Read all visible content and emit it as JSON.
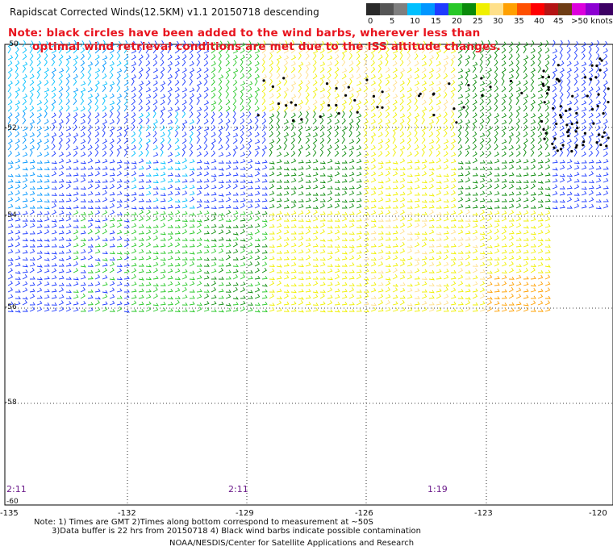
{
  "header": {
    "title": "Rapidscat Corrected Winds(12.5KM) v1.1 20150718 descending",
    "note_line1": "Note: black circles have been added to the wind barbs, wherever less than",
    "note_line2": "optimal wind retrieval conditions are met due to the ISS altitude changes."
  },
  "legend": {
    "colors": [
      "#2a2a2a",
      "#555555",
      "#7f7f7f",
      "#00c0ff",
      "#0096ff",
      "#1f3cff",
      "#28c828",
      "#0a8a0a",
      "#f0f000",
      "#ffe08a",
      "#ffa000",
      "#ff5000",
      "#ff0000",
      "#b41414",
      "#6e3c14",
      "#dc00dc",
      "#8c00d2",
      "#3c0064"
    ],
    "labels": [
      "0",
      "5",
      "10",
      "15",
      "20",
      "25",
      "30",
      "35",
      "40",
      "45",
      ">50 knots"
    ]
  },
  "axes": {
    "lat_labels": [
      "-50",
      "-52",
      "-54",
      "-56",
      "-58",
      "-60"
    ],
    "lon_labels": [
      "-135",
      "-132",
      "-129",
      "-126",
      "-123",
      "-120"
    ]
  },
  "times": [
    "2:11",
    "2:11",
    "1:19"
  ],
  "footer": {
    "line1": "Note: 1) Times are GMT 2)Times along bottom correspond to measurement at ~50S",
    "line2": "3)Data buffer is 22 hrs from 20150718 4) Black wind barbs indicate possible contamination",
    "line3": "NOAA/NESDIS/Center for Satellite Applications and Research"
  }
}
